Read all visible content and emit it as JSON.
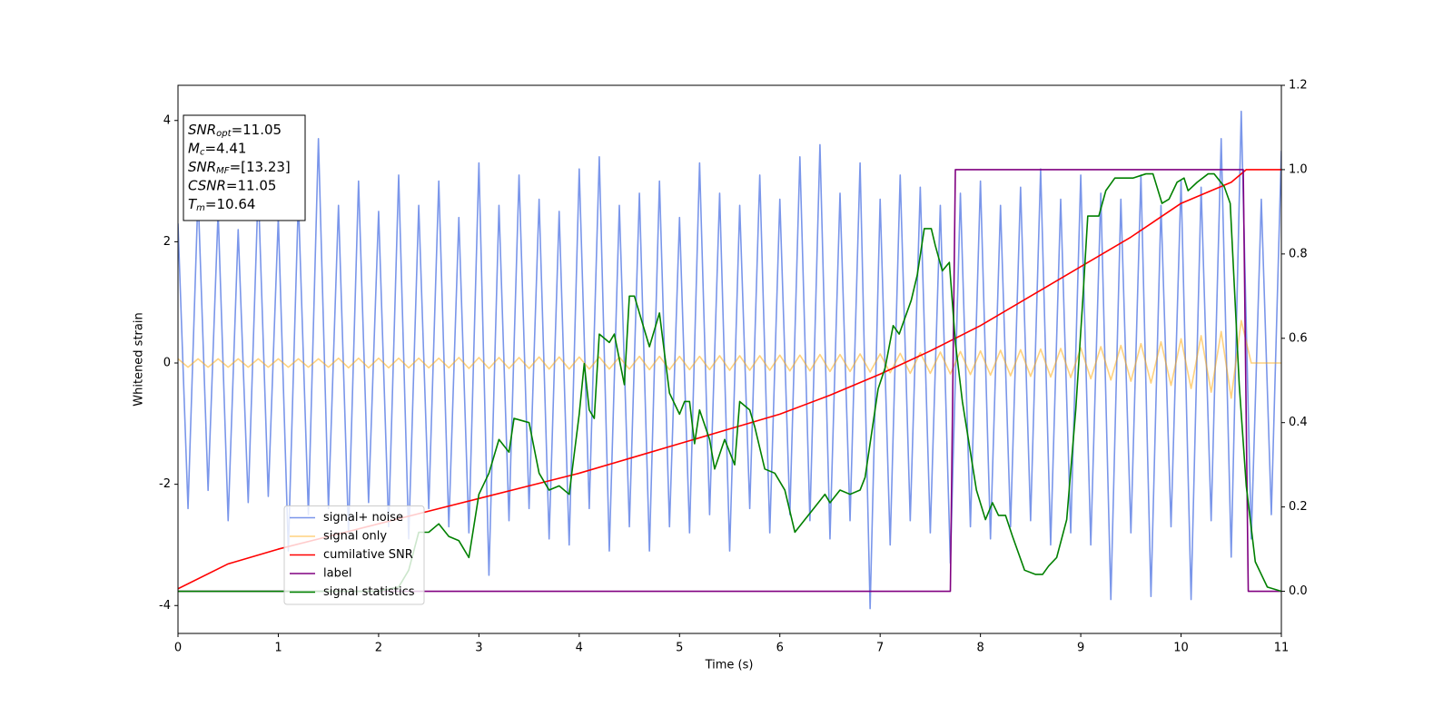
{
  "chart_data": {
    "type": "line",
    "xlabel": "Time (s)",
    "ylabel": "Whitened strain",
    "xlim": [
      0,
      11
    ],
    "xticks": [
      0,
      1,
      2,
      3,
      4,
      5,
      6,
      7,
      8,
      9,
      10,
      11
    ],
    "ylim": [
      -4.46,
      4.58
    ],
    "yticks": [
      -4,
      -2,
      0,
      2,
      4
    ],
    "y2lim": [
      -0.1,
      1.2
    ],
    "y2ticks": [
      {
        "value": 0,
        "label": "0.0"
      },
      0.2,
      0.4,
      0.6,
      0.8,
      {
        "value": 1,
        "label": "1.0"
      },
      1.2
    ],
    "legend": "lower left",
    "annotation": [
      {
        "main": "SNR",
        "sub": "opt",
        "rest": "=11.05"
      },
      {
        "main": "M",
        "sub": "c",
        "rest": "=4.41"
      },
      {
        "main": "SNR",
        "sub": "MF",
        "rest": "=[13.23]"
      },
      {
        "main": "CSNR",
        "sub": "",
        "rest": "=11.05"
      },
      {
        "main": "T",
        "sub": "m",
        "rest": "=10.64"
      }
    ],
    "series": [
      {
        "name": "signal+ noise",
        "color": "#4169e1",
        "alpha": 0.7,
        "x": [
          0,
          0.1,
          0.2,
          0.3,
          0.4,
          0.5,
          0.6,
          0.7,
          0.8,
          0.9,
          1,
          1.1,
          1.2,
          1.3,
          1.4,
          1.5,
          1.6,
          1.7,
          1.8,
          1.9,
          2,
          2.1,
          2.2,
          2.3,
          2.4,
          2.5,
          2.6,
          2.7,
          2.8,
          2.9,
          3,
          3.1,
          3.2,
          3.3,
          3.4,
          3.5,
          3.6,
          3.7,
          3.8,
          3.9,
          4,
          4.1,
          4.2,
          4.3,
          4.4,
          4.5,
          4.6,
          4.7,
          4.8,
          4.9,
          5,
          5.1,
          5.2,
          5.3,
          5.4,
          5.5,
          5.6,
          5.7,
          5.8,
          5.9,
          6,
          6.1,
          6.2,
          6.3,
          6.4,
          6.5,
          6.6,
          6.7,
          6.8,
          6.9,
          7,
          7.1,
          7.2,
          7.3,
          7.4,
          7.5,
          7.6,
          7.7,
          7.8,
          7.9,
          8,
          8.1,
          8.2,
          8.3,
          8.4,
          8.5,
          8.6,
          8.7,
          8.8,
          8.9,
          9,
          9.1,
          9.2,
          9.3,
          9.4,
          9.5,
          9.6,
          9.7,
          9.8,
          9.9,
          10,
          10.1,
          10.2,
          10.3,
          10.4,
          10.5,
          10.6,
          10.7,
          10.8,
          10.9,
          11
        ],
        "values": [
          2.3,
          -2.4,
          2.8,
          -2.1,
          2.5,
          -2.6,
          2.2,
          -2.3,
          2.9,
          -2.2,
          2.4,
          -3.1,
          2.7,
          -2.5,
          3.7,
          -2.4,
          2.6,
          -2.8,
          3.0,
          -2.3,
          2.5,
          -2.7,
          3.1,
          -2.9,
          2.6,
          -2.4,
          3.0,
          -2.7,
          2.4,
          -2.8,
          3.3,
          -3.5,
          2.6,
          -2.6,
          3.1,
          -2.4,
          2.7,
          -2.9,
          2.5,
          -3.0,
          3.2,
          -2.4,
          3.4,
          -3.1,
          2.6,
          -2.7,
          2.8,
          -3.1,
          3.0,
          -2.7,
          2.4,
          -2.8,
          3.3,
          -2.5,
          2.8,
          -3.1,
          2.6,
          -2.4,
          3.1,
          -2.8,
          2.7,
          -2.5,
          3.4,
          -2.6,
          3.6,
          -2.9,
          2.8,
          -2.6,
          3.3,
          -4.05,
          2.7,
          -3.0,
          3.1,
          -2.6,
          2.9,
          -2.8,
          2.6,
          -3.3,
          2.8,
          -2.7,
          3.0,
          -2.9,
          2.6,
          -2.7,
          2.9,
          -2.6,
          3.2,
          -3.0,
          2.7,
          -2.8,
          3.1,
          -3.0,
          2.8,
          -3.9,
          2.7,
          -2.8,
          3.1,
          -3.85,
          2.6,
          -2.7,
          3.0,
          -3.9,
          2.9,
          -2.6,
          3.7,
          -3.2,
          4.15,
          -2.9,
          2.7,
          -2.5,
          3.5
        ]
      },
      {
        "name": "signal only",
        "color": "#ffa500",
        "alpha": 0.5,
        "x": [
          0,
          0.1,
          0.2,
          0.3,
          0.4,
          0.5,
          0.6,
          0.7,
          0.8,
          0.9,
          1,
          1.1,
          1.2,
          1.3,
          1.4,
          1.5,
          1.6,
          1.7,
          1.8,
          1.9,
          2,
          2.1,
          2.2,
          2.3,
          2.4,
          2.5,
          2.6,
          2.7,
          2.8,
          2.9,
          3,
          3.1,
          3.2,
          3.3,
          3.4,
          3.5,
          3.6,
          3.7,
          3.8,
          3.9,
          4,
          4.1,
          4.2,
          4.3,
          4.4,
          4.5,
          4.6,
          4.7,
          4.8,
          4.9,
          5,
          5.1,
          5.2,
          5.3,
          5.4,
          5.5,
          5.6,
          5.7,
          5.8,
          5.9,
          6,
          6.1,
          6.2,
          6.3,
          6.4,
          6.5,
          6.6,
          6.7,
          6.8,
          6.9,
          7,
          7.1,
          7.2,
          7.3,
          7.4,
          7.5,
          7.6,
          7.7,
          7.8,
          7.9,
          8,
          8.1,
          8.2,
          8.3,
          8.4,
          8.5,
          8.6,
          8.7,
          8.8,
          8.9,
          9,
          9.1,
          9.2,
          9.3,
          9.4,
          9.5,
          9.6,
          9.7,
          9.8,
          9.9,
          10,
          10.1,
          10.2,
          10.3,
          10.4,
          10.5,
          10.6,
          10.7,
          10.8,
          10.9,
          11
        ],
        "values": [
          0.07,
          -0.07,
          0.07,
          -0.07,
          0.07,
          -0.07,
          0.07,
          -0.07,
          0.07,
          -0.07,
          0.07,
          -0.07,
          0.07,
          -0.07,
          0.07,
          -0.07,
          0.08,
          -0.08,
          0.08,
          -0.08,
          0.08,
          -0.08,
          0.08,
          -0.08,
          0.08,
          -0.08,
          0.08,
          -0.08,
          0.09,
          -0.09,
          0.09,
          -0.09,
          0.09,
          -0.09,
          0.09,
          -0.09,
          0.1,
          -0.1,
          0.1,
          -0.1,
          0.1,
          -0.1,
          0.1,
          -0.1,
          0.1,
          -0.1,
          0.11,
          -0.11,
          0.11,
          -0.11,
          0.11,
          -0.11,
          0.11,
          -0.11,
          0.12,
          -0.12,
          0.12,
          -0.12,
          0.12,
          -0.12,
          0.13,
          -0.13,
          0.13,
          -0.13,
          0.14,
          -0.14,
          0.14,
          -0.14,
          0.15,
          -0.15,
          0.15,
          -0.16,
          0.16,
          -0.17,
          0.17,
          -0.17,
          0.18,
          -0.18,
          0.19,
          -0.19,
          0.2,
          -0.2,
          0.21,
          -0.21,
          0.22,
          -0.22,
          0.23,
          -0.23,
          0.24,
          -0.24,
          0.25,
          -0.26,
          0.27,
          -0.28,
          0.29,
          -0.3,
          0.32,
          -0.33,
          0.35,
          -0.37,
          0.4,
          -0.42,
          0.45,
          -0.48,
          0.52,
          -0.58,
          0.7,
          0,
          0,
          0,
          0
        ]
      },
      {
        "name": "cumilative SNR",
        "color": "#ff0000",
        "axis": "y2",
        "x": [
          0,
          0.5,
          1,
          1.5,
          2,
          2.5,
          3,
          3.5,
          4,
          4.5,
          5,
          5.5,
          6,
          6.5,
          7,
          7.5,
          8,
          8.5,
          9,
          9.5,
          10,
          10.3,
          10.5,
          10.65,
          11
        ],
        "values": [
          0.006,
          0.065,
          0.1,
          0.13,
          0.16,
          0.19,
          0.22,
          0.25,
          0.28,
          0.315,
          0.35,
          0.385,
          0.42,
          0.465,
          0.515,
          0.57,
          0.63,
          0.7,
          0.77,
          0.84,
          0.92,
          0.95,
          0.97,
          1.0,
          1.0
        ]
      },
      {
        "name": "label",
        "color": "#800080",
        "axis": "y2",
        "x": [
          0,
          7.7,
          7.75,
          10.62,
          10.67,
          11
        ],
        "values": [
          0,
          0,
          1,
          1,
          0,
          0
        ]
      },
      {
        "name": "signal statistics",
        "color": "#008000",
        "axis": "y2",
        "x": [
          0,
          1,
          2,
          2.2,
          2.3,
          2.4,
          2.5,
          2.6,
          2.7,
          2.8,
          2.9,
          3.0,
          3.1,
          3.2,
          3.3,
          3.35,
          3.5,
          3.6,
          3.7,
          3.8,
          3.9,
          4.0,
          4.05,
          4.1,
          4.15,
          4.2,
          4.3,
          4.35,
          4.45,
          4.5,
          4.55,
          4.65,
          4.7,
          4.8,
          4.9,
          5.0,
          5.05,
          5.1,
          5.15,
          5.2,
          5.3,
          5.35,
          5.45,
          5.55,
          5.6,
          5.7,
          5.75,
          5.85,
          5.95,
          6.05,
          6.15,
          6.25,
          6.35,
          6.45,
          6.5,
          6.6,
          6.7,
          6.8,
          6.85,
          6.98,
          7.05,
          7.13,
          7.19,
          7.31,
          7.37,
          7.44,
          7.51,
          7.55,
          7.62,
          7.69,
          7.75,
          7.82,
          7.96,
          8.05,
          8.12,
          8.18,
          8.25,
          8.32,
          8.44,
          8.55,
          8.62,
          8.68,
          8.76,
          8.86,
          8.95,
          9.02,
          9.07,
          9.18,
          9.25,
          9.34,
          9.43,
          9.52,
          9.65,
          9.72,
          9.81,
          9.88,
          9.96,
          10.03,
          10.07,
          10.16,
          10.27,
          10.33,
          10.43,
          10.49,
          10.58,
          10.65,
          10.74,
          10.86,
          11
        ],
        "values": [
          0,
          0,
          0,
          0.01,
          0.05,
          0.14,
          0.14,
          0.16,
          0.13,
          0.12,
          0.08,
          0.23,
          0.28,
          0.36,
          0.33,
          0.41,
          0.4,
          0.28,
          0.24,
          0.25,
          0.23,
          0.42,
          0.54,
          0.43,
          0.41,
          0.61,
          0.59,
          0.61,
          0.49,
          0.7,
          0.7,
          0.62,
          0.58,
          0.66,
          0.47,
          0.42,
          0.45,
          0.45,
          0.35,
          0.43,
          0.36,
          0.29,
          0.36,
          0.3,
          0.45,
          0.43,
          0.39,
          0.29,
          0.28,
          0.24,
          0.14,
          0.17,
          0.2,
          0.23,
          0.21,
          0.24,
          0.23,
          0.24,
          0.27,
          0.48,
          0.53,
          0.63,
          0.61,
          0.69,
          0.75,
          0.86,
          0.86,
          0.82,
          0.76,
          0.78,
          0.59,
          0.45,
          0.24,
          0.17,
          0.21,
          0.18,
          0.18,
          0.13,
          0.05,
          0.04,
          0.04,
          0.06,
          0.08,
          0.17,
          0.43,
          0.69,
          0.89,
          0.89,
          0.95,
          0.98,
          0.98,
          0.98,
          0.99,
          0.99,
          0.92,
          0.93,
          0.97,
          0.98,
          0.95,
          0.97,
          0.99,
          0.99,
          0.96,
          0.92,
          0.49,
          0.25,
          0.07,
          0.01,
          0
        ]
      }
    ]
  }
}
